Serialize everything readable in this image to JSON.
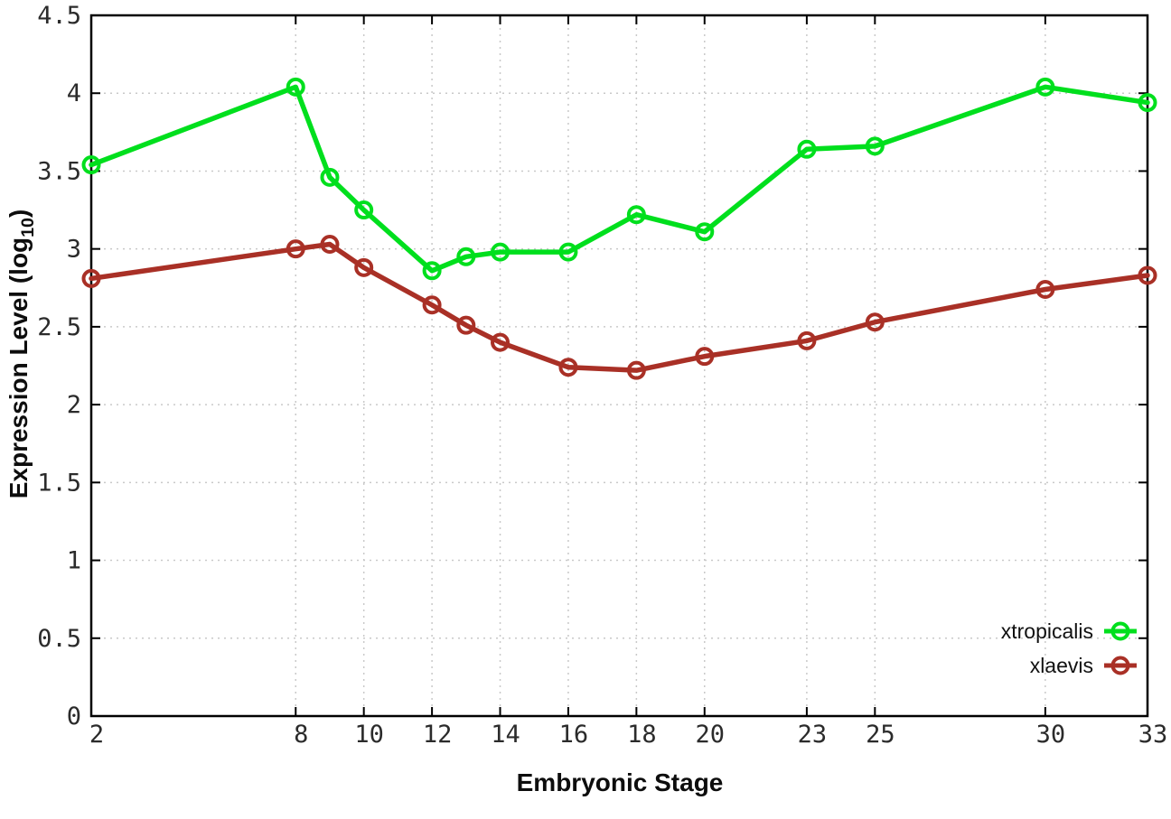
{
  "chart_data": {
    "type": "line",
    "title": "",
    "xlabel": "Embryonic Stage",
    "ylabel_main": "Expression Level (log",
    "ylabel_sub": "10",
    "ylabel_close": ")",
    "xlim": [
      2,
      33
    ],
    "ylim": [
      0,
      4.5
    ],
    "grid": true,
    "legend_position": "bottom-right",
    "xticks": [
      2,
      8,
      10,
      12,
      14,
      16,
      18,
      20,
      23,
      25,
      30,
      33
    ],
    "xtick_labels": [
      "2",
      "8",
      "10",
      "12",
      "14",
      "16",
      "18",
      "20",
      "23",
      "25",
      "30",
      "33"
    ],
    "yticks": [
      0,
      0.5,
      1,
      1.5,
      2,
      2.5,
      3,
      3.5,
      4,
      4.5
    ],
    "ytick_labels": [
      "0",
      "0.5",
      "1",
      "1.5",
      "2",
      "2.5",
      "3",
      "3.5",
      "4",
      "4.5"
    ],
    "x": [
      2,
      8,
      9,
      10,
      12,
      13,
      14,
      16,
      18,
      20,
      23,
      25,
      30,
      33
    ],
    "series": [
      {
        "name": "xtropicalis",
        "color": "#00df1d",
        "marker": "open-circle",
        "values": [
          3.54,
          4.04,
          3.46,
          3.25,
          2.86,
          2.95,
          2.98,
          2.98,
          3.22,
          3.11,
          3.64,
          3.66,
          4.04,
          3.94
        ]
      },
      {
        "name": "xlaevis",
        "color": "#a93026",
        "marker": "open-circle",
        "values": [
          2.81,
          3.0,
          3.03,
          2.88,
          2.64,
          2.51,
          2.4,
          2.24,
          2.22,
          2.31,
          2.41,
          2.53,
          2.74,
          2.83
        ]
      }
    ],
    "colors": {
      "border": "#000000",
      "grid": "#c9c9c9",
      "tick_text": "#2b2b2b",
      "background": "#ffffff"
    }
  }
}
